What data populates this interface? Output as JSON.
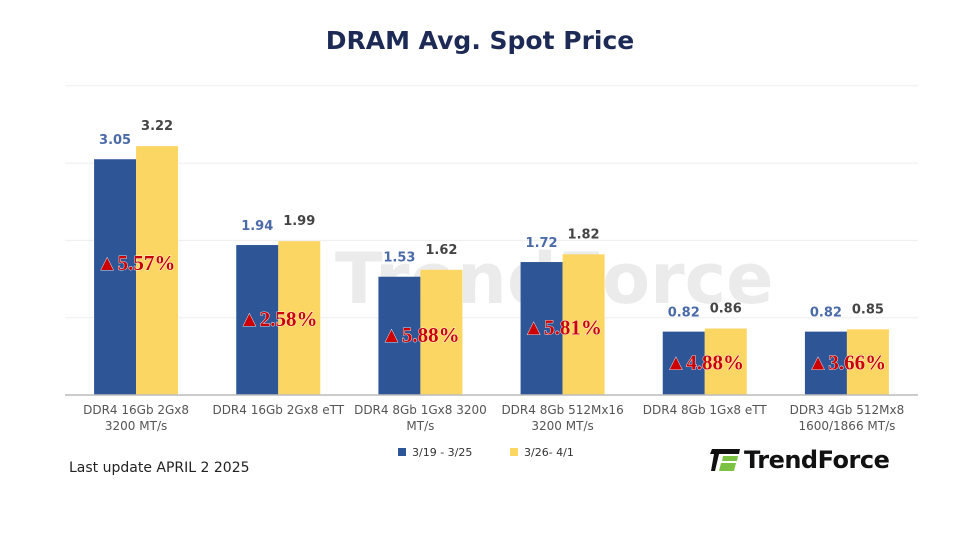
{
  "chart_data": {
    "type": "bar",
    "title": "DRAM Avg. Spot Price",
    "categories": [
      "DDR4 16Gb 2Gx8|3200 MT/s",
      "DDR4 16Gb 2Gx8 eTT",
      "DDR4 8Gb 1Gx8 3200|MT/s",
      "DDR4 8Gb 512Mx16|3200 MT/s",
      "DDR4 8Gb 1Gx8 eTT",
      "DDR3 4Gb 512Mx8|1600/1866  MT/s"
    ],
    "series": [
      {
        "name": "3/19 - 3/25",
        "color": "#2e5596",
        "values": [
          3.05,
          1.94,
          1.53,
          1.72,
          0.82,
          0.82
        ]
      },
      {
        "name": "3/26- 4/1",
        "color": "#fcd663",
        "values": [
          3.22,
          1.99,
          1.62,
          1.82,
          0.86,
          0.85
        ]
      }
    ],
    "annotations": [
      "▲5.57%",
      "▲2.58%",
      "▲5.88%",
      "▲5.81%",
      "▲4.88%",
      "▲3.66%"
    ],
    "ylim": [
      0,
      4
    ],
    "grid": true,
    "legend": "bottom",
    "annotation_color": "#cc0000"
  },
  "footer": {
    "last_update": "Last update APRIL 2  2025",
    "logo_text": "TrendForce",
    "watermark": "TrendForce"
  }
}
